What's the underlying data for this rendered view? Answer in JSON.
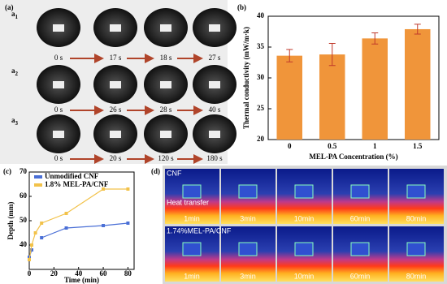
{
  "panel_a": {
    "label": "(a)",
    "rows": [
      {
        "label": "a",
        "sub": "1",
        "times": [
          "0 s",
          "17 s",
          "18 s",
          "27 s"
        ]
      },
      {
        "label": "a",
        "sub": "2",
        "times": [
          "0 s",
          "26 s",
          "28 s",
          "40 s"
        ]
      },
      {
        "label": "a",
        "sub": "3",
        "times": [
          "0 s",
          "20 s",
          "120 s",
          "180 s"
        ]
      }
    ]
  },
  "chart_data": [
    {
      "type": "bar",
      "label": "(b)",
      "categories": [
        "0",
        "0.5",
        "1",
        "1.5"
      ],
      "values": [
        33.6,
        33.8,
        36.4,
        37.9
      ],
      "errors": [
        1.0,
        1.8,
        0.9,
        0.8
      ],
      "color": "#f0953a",
      "ylim": [
        20,
        40
      ],
      "yticks": [
        20,
        25,
        30,
        35,
        40
      ],
      "y_label": "Thermal conductivity (mW/m·k)",
      "x_label": "MEL-PA Concentration (%)"
    },
    {
      "type": "line",
      "label": "(c)",
      "x": [
        0,
        2,
        5,
        10,
        30,
        60,
        80
      ],
      "series": [
        {
          "name": "Unmodified CNF",
          "color": "#4a6fd6",
          "values": [
            35,
            38,
            null,
            43,
            47,
            48,
            49
          ]
        },
        {
          "name": "1.8% MEL-PA/CNF",
          "color": "#f2c24a",
          "values": [
            34,
            40,
            45,
            49,
            53,
            63,
            63
          ]
        }
      ],
      "xlim": [
        0,
        85
      ],
      "ylim": [
        30,
        70
      ],
      "xticks": [
        0,
        20,
        40,
        60,
        80
      ],
      "yticks": [
        40,
        50,
        60,
        70
      ],
      "y_label": "Depth (mm)",
      "x_label": "Time (min)"
    }
  ],
  "panel_d": {
    "label": "(d)",
    "annotation": "Heat transfer",
    "rows": [
      {
        "label": "CNF",
        "times": [
          "1min",
          "3min",
          "10min",
          "60min",
          "80min"
        ]
      },
      {
        "label": "1.74%MEL-PA/CNF",
        "times": [
          "1min",
          "3min",
          "10min",
          "60min",
          "80min"
        ]
      }
    ]
  }
}
